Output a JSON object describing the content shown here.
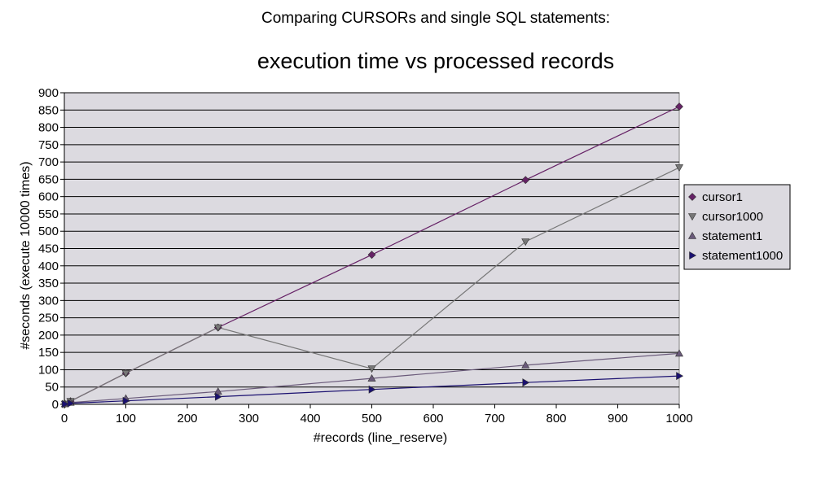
{
  "chart_data": {
    "type": "scatter",
    "subtitle": "Comparing CURSORs and single SQL statements:",
    "title": "execution time vs processed records",
    "xlabel": "#records (line_reserve)",
    "ylabel": "#seconds (execute 10000 times)",
    "xlim": [
      0,
      1000
    ],
    "ylim": [
      0,
      900
    ],
    "x_ticks": [
      "0",
      "100",
      "200",
      "300",
      "400",
      "500",
      "600",
      "700",
      "800",
      "900",
      "1000"
    ],
    "y_ticks": [
      "0",
      "50",
      "100",
      "150",
      "200",
      "250",
      "300",
      "350",
      "400",
      "450",
      "500",
      "550",
      "600",
      "650",
      "700",
      "750",
      "800",
      "850",
      "900"
    ],
    "grid": "horizontal",
    "plot_background": "#dcdae0",
    "legend_position": "right",
    "series": [
      {
        "name": "cursor1",
        "color": "#662266",
        "marker": "diamond",
        "points": [
          [
            1,
            1
          ],
          [
            10,
            9
          ],
          [
            100,
            90
          ],
          [
            250,
            222
          ],
          [
            500,
            432
          ],
          [
            750,
            648
          ],
          [
            1000,
            860
          ]
        ]
      },
      {
        "name": "cursor1000",
        "color": "#777777",
        "marker": "triangle-down",
        "points": [
          [
            1,
            1
          ],
          [
            10,
            9
          ],
          [
            100,
            90
          ],
          [
            250,
            222
          ],
          [
            500,
            103
          ],
          [
            750,
            470
          ],
          [
            1000,
            684
          ]
        ]
      },
      {
        "name": "statement1",
        "color": "#6a5a7a",
        "marker": "triangle-up",
        "points": [
          [
            1,
            1
          ],
          [
            10,
            5
          ],
          [
            100,
            17
          ],
          [
            250,
            37
          ],
          [
            500,
            75
          ],
          [
            750,
            113
          ],
          [
            1000,
            147
          ]
        ]
      },
      {
        "name": "statement1000",
        "color": "#1a1070",
        "marker": "triangle-right",
        "points": [
          [
            1,
            1
          ],
          [
            10,
            3
          ],
          [
            100,
            10
          ],
          [
            250,
            22
          ],
          [
            500,
            43
          ],
          [
            750,
            63
          ],
          [
            1000,
            82
          ]
        ]
      }
    ]
  }
}
